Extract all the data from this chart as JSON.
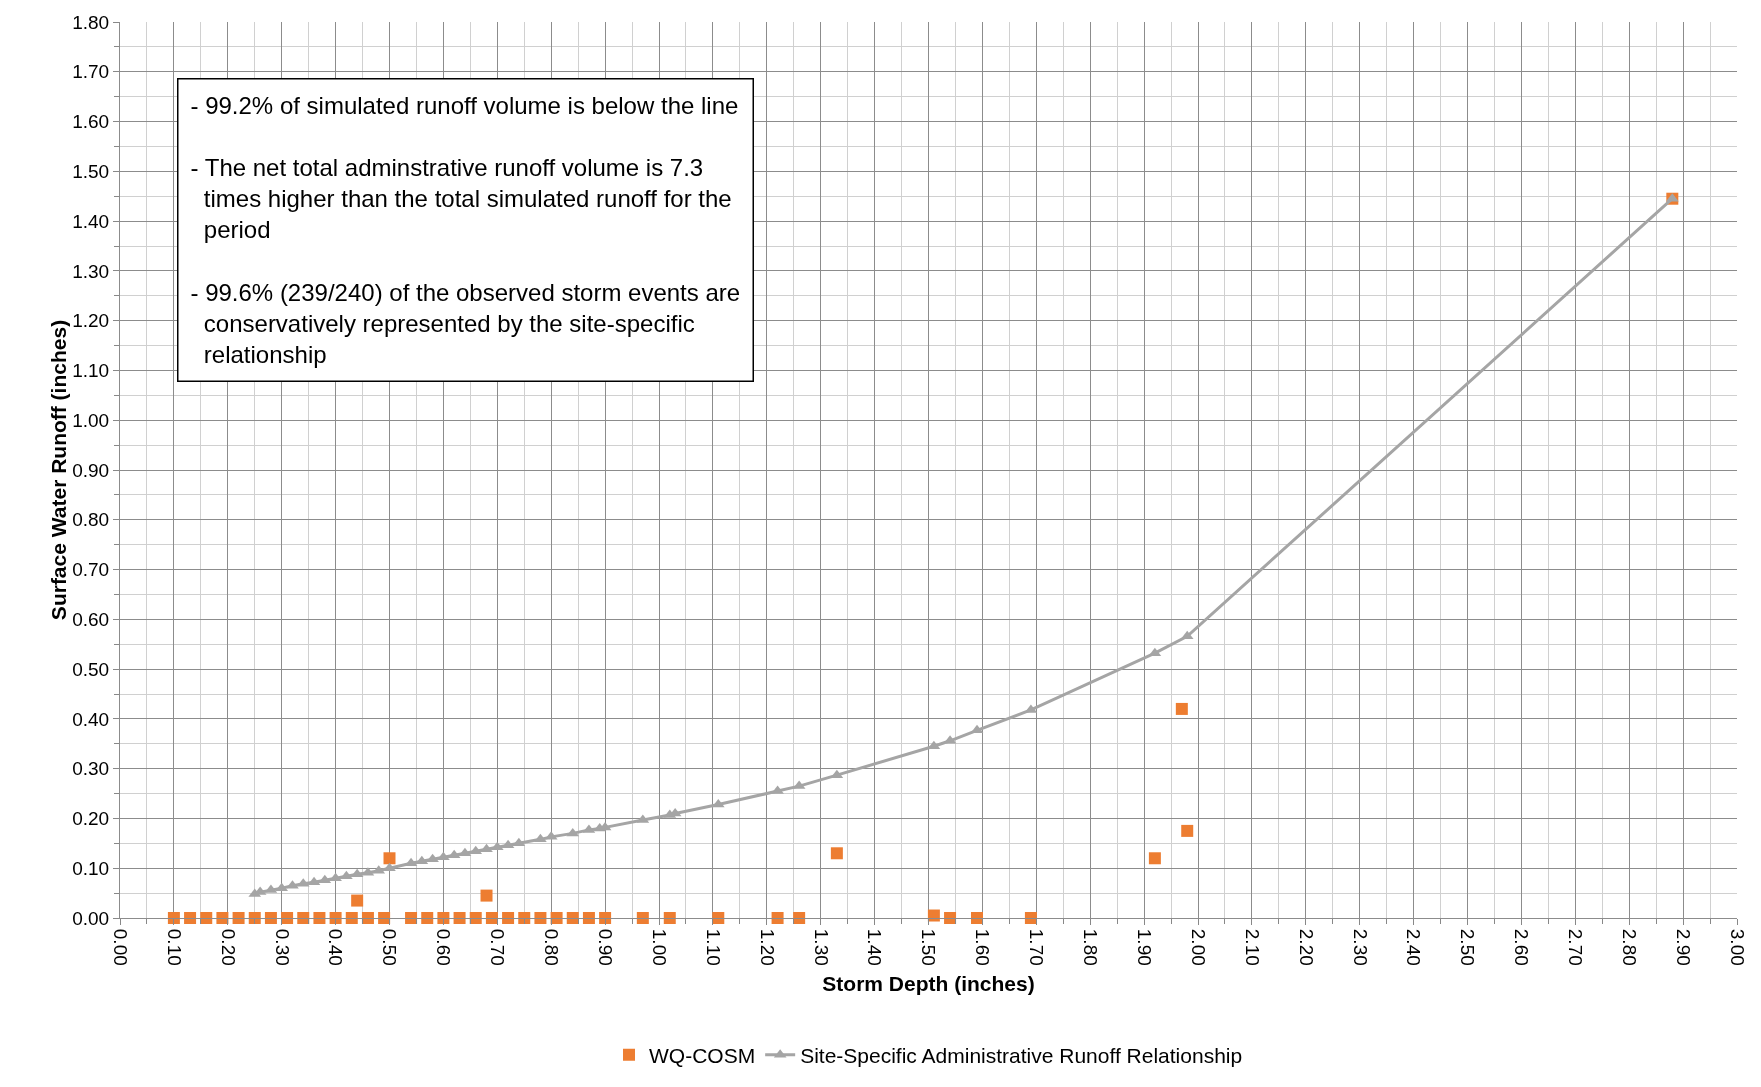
{
  "chart_data": {
    "type": "scatter",
    "xlabel": "Storm Depth (inches)",
    "ylabel": "Surface Water Runoff (inches)",
    "xlim": [
      0,
      3
    ],
    "ylim": [
      0,
      1.8
    ],
    "xticks": [
      {
        "value": 0,
        "label": "0.00"
      },
      {
        "value": 0.1,
        "label": "0.10"
      },
      {
        "value": 0.2,
        "label": "0.20"
      },
      {
        "value": 0.3,
        "label": "0.30"
      },
      {
        "value": 0.4,
        "label": "0.40"
      },
      {
        "value": 0.5,
        "label": "0.50"
      },
      {
        "value": 0.6,
        "label": "0.60"
      },
      {
        "value": 0.7,
        "label": "0.70"
      },
      {
        "value": 0.8,
        "label": "0.80"
      },
      {
        "value": 0.9,
        "label": "0.90"
      },
      {
        "value": 1,
        "label": "1.00"
      },
      {
        "value": 1.1,
        "label": "1.10"
      },
      {
        "value": 1.2,
        "label": "1.20"
      },
      {
        "value": 1.3,
        "label": "1.30"
      },
      {
        "value": 1.4,
        "label": "1.40"
      },
      {
        "value": 1.5,
        "label": "1.50"
      },
      {
        "value": 1.6,
        "label": "1.60"
      },
      {
        "value": 1.7,
        "label": "1.70"
      },
      {
        "value": 1.8,
        "label": "1.80"
      },
      {
        "value": 1.9,
        "label": "1.90"
      },
      {
        "value": 2,
        "label": "2.00"
      },
      {
        "value": 2.1,
        "label": "2.10"
      },
      {
        "value": 2.2,
        "label": "2.20"
      },
      {
        "value": 2.3,
        "label": "2.30"
      },
      {
        "value": 2.4,
        "label": "2.40"
      },
      {
        "value": 2.5,
        "label": "2.50"
      },
      {
        "value": 2.6,
        "label": "2.60"
      },
      {
        "value": 2.7,
        "label": "2.70"
      },
      {
        "value": 2.8,
        "label": "2.80"
      },
      {
        "value": 2.9,
        "label": "2.90"
      },
      {
        "value": 3,
        "label": "3.00"
      }
    ],
    "yticks": [
      {
        "value": 0,
        "label": "0.00"
      },
      {
        "value": 0.1,
        "label": "0.10"
      },
      {
        "value": 0.2,
        "label": "0.20"
      },
      {
        "value": 0.3,
        "label": "0.30"
      },
      {
        "value": 0.4,
        "label": "0.40"
      },
      {
        "value": 0.5,
        "label": "0.50"
      },
      {
        "value": 0.6,
        "label": "0.60"
      },
      {
        "value": 0.7,
        "label": "0.70"
      },
      {
        "value": 0.8,
        "label": "0.80"
      },
      {
        "value": 0.9,
        "label": "0.90"
      },
      {
        "value": 1,
        "label": "1.00"
      },
      {
        "value": 1.1,
        "label": "1.10"
      },
      {
        "value": 1.2,
        "label": "1.20"
      },
      {
        "value": 1.3,
        "label": "1.30"
      },
      {
        "value": 1.4,
        "label": "1.40"
      },
      {
        "value": 1.5,
        "label": "1.50"
      },
      {
        "value": 1.6,
        "label": "1.60"
      },
      {
        "value": 1.7,
        "label": "1.70"
      },
      {
        "value": 1.8,
        "label": "1.80"
      }
    ],
    "grid": true,
    "legend": "bottom",
    "annotations": [
      "- 99.2% of simulated runoff volume is below the line\n\n- The net total adminstrative runoff volume is 7.3\n  times higher than the total simulated runoff for the\n  period\n\n- 99.6% (239/240) of the observed storm events are\n  conservatively represented by the site-specific\n  relationship"
    ],
    "series": [
      {
        "name": "WQ-COSM",
        "type": "scatter",
        "marker": "square",
        "color": "#ed7d31",
        "x": [
          0.1,
          0.13,
          0.16,
          0.19,
          0.22,
          0.25,
          0.28,
          0.31,
          0.34,
          0.37,
          0.4,
          0.43,
          0.46,
          0.49,
          0.54,
          0.57,
          0.6,
          0.63,
          0.66,
          0.69,
          0.72,
          0.75,
          0.78,
          0.81,
          0.84,
          0.87,
          0.9,
          0.97,
          1.02,
          1.11,
          1.22,
          1.26,
          1.51,
          1.54,
          1.59,
          1.69,
          0.44,
          0.5,
          0.68,
          1.33,
          1.92,
          1.98,
          1.97,
          2.88
        ],
        "values": [
          0,
          0,
          0,
          0,
          0,
          0,
          0,
          0,
          0,
          0,
          0,
          0,
          0,
          0,
          0,
          0,
          0,
          0,
          0,
          0,
          0,
          0,
          0,
          0,
          0,
          0,
          0,
          0,
          0,
          0,
          0,
          0,
          0.005,
          0,
          0,
          0,
          0.035,
          0.12,
          0.045,
          0.13,
          0.12,
          0.175,
          0.42,
          1.445
        ]
      },
      {
        "name": "Site-Specific Administrative Runoff Relationship",
        "type": "line",
        "marker": "triangle",
        "line_style": "solid",
        "color": "#a5a5a5",
        "x": [
          0.25,
          0.26,
          0.28,
          0.3,
          0.32,
          0.34,
          0.36,
          0.38,
          0.4,
          0.42,
          0.44,
          0.46,
          0.48,
          0.5,
          0.54,
          0.56,
          0.58,
          0.6,
          0.62,
          0.64,
          0.66,
          0.68,
          0.7,
          0.72,
          0.74,
          0.78,
          0.8,
          0.84,
          0.87,
          0.89,
          0.9,
          0.97,
          1.02,
          1.03,
          1.11,
          1.22,
          1.26,
          1.33,
          1.51,
          1.54,
          1.59,
          1.69,
          1.92,
          1.98,
          2.88
        ],
        "values": [
          0.048,
          0.052,
          0.056,
          0.06,
          0.065,
          0.069,
          0.072,
          0.076,
          0.08,
          0.084,
          0.088,
          0.091,
          0.095,
          0.1,
          0.11,
          0.114,
          0.118,
          0.122,
          0.126,
          0.13,
          0.134,
          0.138,
          0.142,
          0.146,
          0.15,
          0.158,
          0.163,
          0.17,
          0.177,
          0.18,
          0.182,
          0.197,
          0.207,
          0.21,
          0.228,
          0.255,
          0.265,
          0.287,
          0.345,
          0.356,
          0.377,
          0.418,
          0.532,
          0.566,
          1.445
        ]
      }
    ]
  }
}
